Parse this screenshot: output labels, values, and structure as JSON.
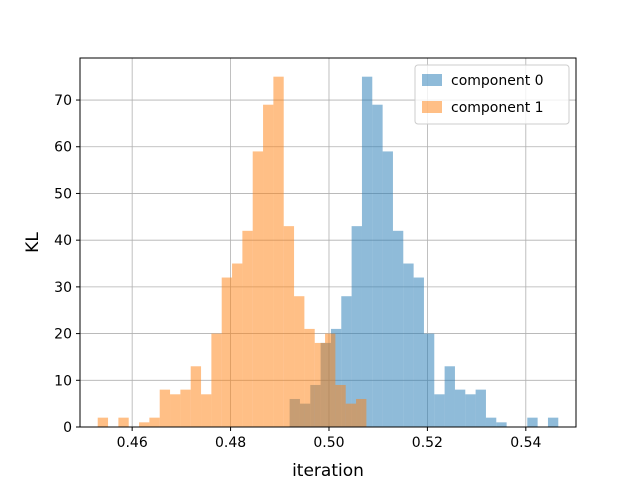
{
  "chart_data": {
    "type": "histogram",
    "title": "",
    "xlabel": "iteration",
    "ylabel": "KL",
    "xlim": [
      0.4494,
      0.5502
    ],
    "ylim": [
      0,
      79
    ],
    "xticks": [
      0.46,
      0.48,
      0.5,
      0.52,
      0.54
    ],
    "xtick_labels": [
      "0.46",
      "0.48",
      "0.50",
      "0.52",
      "0.54"
    ],
    "yticks": [
      0,
      10,
      20,
      30,
      40,
      50,
      60,
      70
    ],
    "ytick_labels": [
      "0",
      "10",
      "20",
      "30",
      "40",
      "50",
      "60",
      "70"
    ],
    "grid": true,
    "legend_position": "top-right",
    "series": [
      {
        "name": "component 0",
        "color": "#1f77b4",
        "alpha": 0.5,
        "bins": [
          {
            "x0": 0.492,
            "x1": 0.4941,
            "y": 6
          },
          {
            "x0": 0.4941,
            "x1": 0.4962,
            "y": 5
          },
          {
            "x0": 0.4962,
            "x1": 0.4983,
            "y": 9
          },
          {
            "x0": 0.4983,
            "x1": 0.5004,
            "y": 18
          },
          {
            "x0": 0.5004,
            "x1": 0.5025,
            "y": 21
          },
          {
            "x0": 0.5025,
            "x1": 0.5046,
            "y": 28
          },
          {
            "x0": 0.5046,
            "x1": 0.5067,
            "y": 43
          },
          {
            "x0": 0.5067,
            "x1": 0.5088,
            "y": 75
          },
          {
            "x0": 0.5088,
            "x1": 0.5109,
            "y": 69
          },
          {
            "x0": 0.5109,
            "x1": 0.513,
            "y": 59
          },
          {
            "x0": 0.513,
            "x1": 0.5151,
            "y": 42
          },
          {
            "x0": 0.5151,
            "x1": 0.5172,
            "y": 35
          },
          {
            "x0": 0.5172,
            "x1": 0.5193,
            "y": 32
          },
          {
            "x0": 0.5193,
            "x1": 0.5214,
            "y": 20
          },
          {
            "x0": 0.5214,
            "x1": 0.5235,
            "y": 7
          },
          {
            "x0": 0.5235,
            "x1": 0.5256,
            "y": 13
          },
          {
            "x0": 0.5256,
            "x1": 0.5277,
            "y": 8
          },
          {
            "x0": 0.5277,
            "x1": 0.5298,
            "y": 7
          },
          {
            "x0": 0.5298,
            "x1": 0.5319,
            "y": 8
          },
          {
            "x0": 0.5319,
            "x1": 0.534,
            "y": 2
          },
          {
            "x0": 0.534,
            "x1": 0.5361,
            "y": 1
          },
          {
            "x0": 0.5403,
            "x1": 0.5424,
            "y": 2
          },
          {
            "x0": 0.5445,
            "x1": 0.5466,
            "y": 2
          }
        ]
      },
      {
        "name": "component 1",
        "color": "#ff7f0e",
        "alpha": 0.5,
        "bins": [
          {
            "x0": 0.453,
            "x1": 0.4551,
            "y": 2
          },
          {
            "x0": 0.4572,
            "x1": 0.4593,
            "y": 2
          },
          {
            "x0": 0.4614,
            "x1": 0.4635,
            "y": 1
          },
          {
            "x0": 0.4635,
            "x1": 0.4656,
            "y": 2
          },
          {
            "x0": 0.4656,
            "x1": 0.4677,
            "y": 8
          },
          {
            "x0": 0.4677,
            "x1": 0.4698,
            "y": 7
          },
          {
            "x0": 0.4698,
            "x1": 0.4719,
            "y": 8
          },
          {
            "x0": 0.4719,
            "x1": 0.474,
            "y": 13
          },
          {
            "x0": 0.474,
            "x1": 0.4761,
            "y": 7
          },
          {
            "x0": 0.4761,
            "x1": 0.4782,
            "y": 20
          },
          {
            "x0": 0.4782,
            "x1": 0.4803,
            "y": 32
          },
          {
            "x0": 0.4803,
            "x1": 0.4824,
            "y": 35
          },
          {
            "x0": 0.4824,
            "x1": 0.4845,
            "y": 42
          },
          {
            "x0": 0.4845,
            "x1": 0.4866,
            "y": 59
          },
          {
            "x0": 0.4866,
            "x1": 0.4887,
            "y": 69
          },
          {
            "x0": 0.4887,
            "x1": 0.4908,
            "y": 75
          },
          {
            "x0": 0.4908,
            "x1": 0.4929,
            "y": 43
          },
          {
            "x0": 0.4929,
            "x1": 0.495,
            "y": 28
          },
          {
            "x0": 0.495,
            "x1": 0.4971,
            "y": 21
          },
          {
            "x0": 0.4971,
            "x1": 0.4992,
            "y": 18
          },
          {
            "x0": 0.4992,
            "x1": 0.5013,
            "y": 20
          },
          {
            "x0": 0.5013,
            "x1": 0.5034,
            "y": 9
          },
          {
            "x0": 0.5034,
            "x1": 0.5055,
            "y": 5
          },
          {
            "x0": 0.5055,
            "x1": 0.5076,
            "y": 6
          }
        ]
      }
    ]
  }
}
